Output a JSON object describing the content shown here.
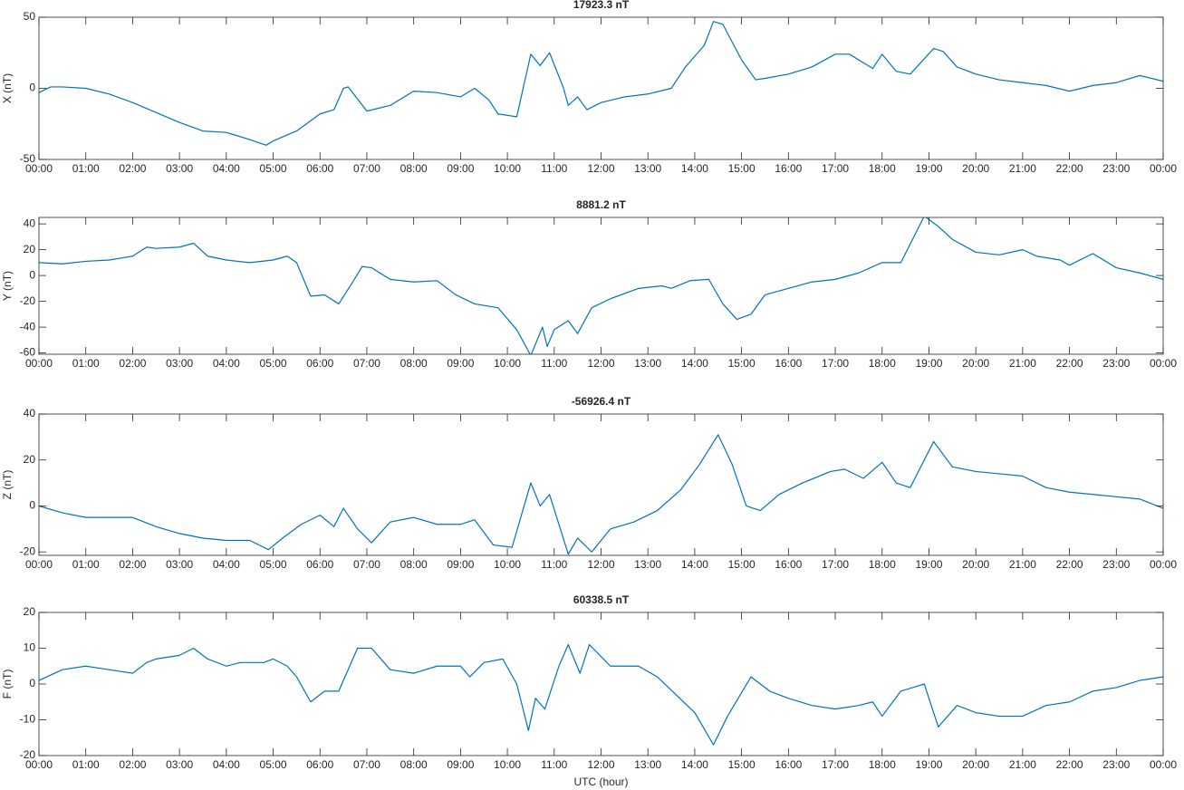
{
  "chart_data": [
    {
      "type": "line",
      "title": "17923.3 nT",
      "ylabel": "X (nT)",
      "color": "#0072bd",
      "x": [
        0,
        0.25,
        0.5,
        1,
        1.5,
        2,
        2.5,
        3,
        3.5,
        4,
        4.5,
        4.85,
        5,
        5.5,
        6,
        6.3,
        6.5,
        6.6,
        7,
        7.5,
        8,
        8.5,
        9,
        9.3,
        9.6,
        9.8,
        10.2,
        10.5,
        10.7,
        10.9,
        11.2,
        11.3,
        11.5,
        11.7,
        12,
        12.5,
        13,
        13.5,
        13.8,
        14.2,
        14.4,
        14.6,
        15,
        15.3,
        15.5,
        16,
        16.5,
        17,
        17.3,
        17.6,
        17.8,
        18,
        18.3,
        18.6,
        19.1,
        19.3,
        19.6,
        20,
        20.5,
        21,
        21.5,
        22,
        22.5,
        23,
        23.5,
        24
      ],
      "values": [
        -3,
        1,
        1,
        0,
        -4,
        -10,
        -17,
        -24,
        -30,
        -31,
        -36,
        -40,
        -37,
        -30,
        -18,
        -15,
        0,
        1,
        -16,
        -12,
        -2,
        -3,
        -6,
        0,
        -8,
        -18,
        -20,
        24,
        16,
        25,
        0,
        -12,
        -6,
        -15,
        -10,
        -6,
        -4,
        0,
        15,
        30,
        47,
        45,
        20,
        6,
        7,
        10,
        15,
        24,
        24,
        18,
        14,
        24,
        12,
        10,
        28,
        26,
        15,
        10,
        6,
        4,
        2,
        -2,
        2,
        4,
        9,
        5
      ],
      "ylim": [
        -50,
        50
      ],
      "yticks": [
        -50,
        0,
        50
      ],
      "xlim": [
        0,
        24
      ],
      "xticks": [
        {
          "value": 0,
          "label": "00:00"
        },
        {
          "value": 1,
          "label": "01:00"
        },
        {
          "value": 2,
          "label": "02:00"
        },
        {
          "value": 3,
          "label": "03:00"
        },
        {
          "value": 4,
          "label": "04:00"
        },
        {
          "value": 5,
          "label": "05:00"
        },
        {
          "value": 6,
          "label": "06:00"
        },
        {
          "value": 7,
          "label": "07:00"
        },
        {
          "value": 8,
          "label": "08:00"
        },
        {
          "value": 9,
          "label": "09:00"
        },
        {
          "value": 10,
          "label": "10:00"
        },
        {
          "value": 11,
          "label": "11:00"
        },
        {
          "value": 12,
          "label": "12:00"
        },
        {
          "value": 13,
          "label": "13:00"
        },
        {
          "value": 14,
          "label": "14:00"
        },
        {
          "value": 15,
          "label": "15:00"
        },
        {
          "value": 16,
          "label": "16:00"
        },
        {
          "value": 17,
          "label": "17:00"
        },
        {
          "value": 18,
          "label": "18:00"
        },
        {
          "value": 19,
          "label": "19:00"
        },
        {
          "value": 20,
          "label": "20:00"
        },
        {
          "value": 21,
          "label": "21:00"
        },
        {
          "value": 22,
          "label": "22:00"
        },
        {
          "value": 23,
          "label": "23:00"
        },
        {
          "value": 24,
          "label": "00:00"
        }
      ]
    },
    {
      "type": "line",
      "title": "8881.2 nT",
      "ylabel": "Y (nT)",
      "color": "#0072bd",
      "x": [
        0,
        0.5,
        1,
        1.5,
        2,
        2.3,
        2.5,
        3,
        3.3,
        3.6,
        4,
        4.5,
        5,
        5.3,
        5.5,
        5.8,
        6.1,
        6.4,
        6.7,
        6.9,
        7.1,
        7.5,
        8,
        8.5,
        8.9,
        9.3,
        9.8,
        10.2,
        10.5,
        10.75,
        10.85,
        11,
        11.3,
        11.5,
        11.8,
        12.2,
        12.8,
        13.3,
        13.5,
        13.9,
        14.3,
        14.6,
        14.9,
        15.2,
        15.5,
        16,
        16.5,
        17,
        17.5,
        18,
        18.4,
        18.9,
        19.2,
        19.5,
        20,
        20.5,
        21,
        21.3,
        21.8,
        22,
        22.5,
        23,
        23.5,
        24
      ],
      "values": [
        10,
        9,
        11,
        12,
        15,
        22,
        21,
        22,
        25,
        15,
        12,
        10,
        12,
        15,
        10,
        -16,
        -15,
        -22,
        -5,
        7,
        6,
        -3,
        -5,
        -4,
        -15,
        -22,
        -25,
        -42,
        -62,
        -40,
        -55,
        -42,
        -35,
        -45,
        -25,
        -18,
        -10,
        -8,
        -10,
        -4,
        -3,
        -22,
        -34,
        -30,
        -15,
        -10,
        -5,
        -3,
        2,
        10,
        10,
        46,
        38,
        28,
        18,
        16,
        20,
        15,
        12,
        8,
        17,
        6,
        2,
        -3
      ],
      "ylim": [
        -61,
        45
      ],
      "yticks": [
        -60,
        -40,
        -20,
        0,
        20,
        40
      ],
      "xlim": [
        0,
        24
      ],
      "xticks": [
        {
          "value": 0,
          "label": "00:00"
        },
        {
          "value": 1,
          "label": "01:00"
        },
        {
          "value": 2,
          "label": "02:00"
        },
        {
          "value": 3,
          "label": "03:00"
        },
        {
          "value": 4,
          "label": "04:00"
        },
        {
          "value": 5,
          "label": "05:00"
        },
        {
          "value": 6,
          "label": "06:00"
        },
        {
          "value": 7,
          "label": "07:00"
        },
        {
          "value": 8,
          "label": "08:00"
        },
        {
          "value": 9,
          "label": "09:00"
        },
        {
          "value": 10,
          "label": "10:00"
        },
        {
          "value": 11,
          "label": "11:00"
        },
        {
          "value": 12,
          "label": "12:00"
        },
        {
          "value": 13,
          "label": "13:00"
        },
        {
          "value": 14,
          "label": "14:00"
        },
        {
          "value": 15,
          "label": "15:00"
        },
        {
          "value": 16,
          "label": "16:00"
        },
        {
          "value": 17,
          "label": "17:00"
        },
        {
          "value": 18,
          "label": "18:00"
        },
        {
          "value": 19,
          "label": "19:00"
        },
        {
          "value": 20,
          "label": "20:00"
        },
        {
          "value": 21,
          "label": "21:00"
        },
        {
          "value": 22,
          "label": "22:00"
        },
        {
          "value": 23,
          "label": "23:00"
        },
        {
          "value": 24,
          "label": "00:00"
        }
      ]
    },
    {
      "type": "line",
      "title": "-56926.4 nT",
      "ylabel": "Z (nT)",
      "color": "#0072bd",
      "x": [
        0,
        0.5,
        1,
        1.5,
        2,
        2.5,
        3,
        3.5,
        4,
        4.5,
        4.9,
        5.2,
        5.6,
        6,
        6.3,
        6.5,
        6.8,
        7.1,
        7.5,
        8,
        8.5,
        9,
        9.3,
        9.7,
        10.1,
        10.5,
        10.7,
        10.9,
        11.3,
        11.5,
        11.8,
        12.2,
        12.7,
        13.2,
        13.7,
        14.1,
        14.5,
        14.8,
        15.1,
        15.4,
        15.8,
        16.3,
        16.9,
        17.2,
        17.6,
        18,
        18.3,
        18.6,
        19.1,
        19.5,
        20,
        20.5,
        21,
        21.5,
        22,
        22.5,
        23,
        23.5,
        24
      ],
      "values": [
        0,
        -3,
        -5,
        -5,
        -5,
        -9,
        -12,
        -14,
        -15,
        -15,
        -19,
        -14,
        -8,
        -4,
        -9,
        -1,
        -10,
        -16,
        -7,
        -5,
        -8,
        -8,
        -6,
        -17,
        -18,
        10,
        0,
        5,
        -21,
        -14,
        -20,
        -10,
        -7,
        -2,
        7,
        18,
        31,
        18,
        0,
        -2,
        5,
        10,
        15,
        16,
        12,
        19,
        10,
        8,
        28,
        17,
        15,
        14,
        13,
        8,
        6,
        5,
        4,
        3,
        -1
      ],
      "ylim": [
        -21.5,
        40
      ],
      "yticks": [
        -20,
        0,
        20,
        40
      ],
      "xlim": [
        0,
        24
      ],
      "xticks": [
        {
          "value": 0,
          "label": "00:00"
        },
        {
          "value": 1,
          "label": "01:00"
        },
        {
          "value": 2,
          "label": "02:00"
        },
        {
          "value": 3,
          "label": "03:00"
        },
        {
          "value": 4,
          "label": "04:00"
        },
        {
          "value": 5,
          "label": "05:00"
        },
        {
          "value": 6,
          "label": "06:00"
        },
        {
          "value": 7,
          "label": "07:00"
        },
        {
          "value": 8,
          "label": "08:00"
        },
        {
          "value": 9,
          "label": "09:00"
        },
        {
          "value": 10,
          "label": "10:00"
        },
        {
          "value": 11,
          "label": "11:00"
        },
        {
          "value": 12,
          "label": "12:00"
        },
        {
          "value": 13,
          "label": "13:00"
        },
        {
          "value": 14,
          "label": "14:00"
        },
        {
          "value": 15,
          "label": "15:00"
        },
        {
          "value": 16,
          "label": "16:00"
        },
        {
          "value": 17,
          "label": "17:00"
        },
        {
          "value": 18,
          "label": "18:00"
        },
        {
          "value": 19,
          "label": "19:00"
        },
        {
          "value": 20,
          "label": "20:00"
        },
        {
          "value": 21,
          "label": "21:00"
        },
        {
          "value": 22,
          "label": "22:00"
        },
        {
          "value": 23,
          "label": "23:00"
        },
        {
          "value": 24,
          "label": "00:00"
        }
      ]
    },
    {
      "type": "line",
      "title": "60338.5 nT",
      "ylabel": "F (nT)",
      "xlabel": "UTC (hour)",
      "color": "#0072bd",
      "x": [
        0,
        0.5,
        1,
        1.5,
        2,
        2.3,
        2.5,
        3,
        3.3,
        3.6,
        4,
        4.3,
        4.8,
        5,
        5.3,
        5.5,
        5.8,
        6.1,
        6.4,
        6.8,
        7.1,
        7.5,
        8,
        8.5,
        9,
        9.2,
        9.5,
        9.9,
        10.2,
        10.45,
        10.6,
        10.8,
        11.1,
        11.3,
        11.55,
        11.75,
        12.2,
        12.8,
        13.2,
        13.6,
        14,
        14.4,
        14.7,
        15.2,
        15.6,
        16,
        16.5,
        17,
        17.5,
        17.8,
        18,
        18.4,
        18.9,
        19.2,
        19.6,
        20,
        20.5,
        21,
        21.5,
        22,
        22.5,
        23,
        23.5,
        24
      ],
      "values": [
        1,
        4,
        5,
        4,
        3,
        6,
        7,
        8,
        10,
        7,
        5,
        6,
        6,
        7,
        5,
        2,
        -5,
        -2,
        -2,
        10,
        10,
        4,
        3,
        5,
        5,
        2,
        6,
        7,
        0,
        -13,
        -4,
        -7,
        5,
        11,
        3,
        11,
        5,
        5,
        2,
        -3,
        -8,
        -17,
        -9,
        2,
        -2,
        -4,
        -6,
        -7,
        -6,
        -5,
        -9,
        -2,
        0,
        -12,
        -6,
        -8,
        -9,
        -9,
        -6,
        -5,
        -2,
        -1,
        1,
        2
      ],
      "ylim": [
        -20,
        20
      ],
      "yticks": [
        -20,
        -10,
        0,
        10,
        20
      ],
      "xlim": [
        0,
        24
      ],
      "xticks": [
        {
          "value": 0,
          "label": "00:00"
        },
        {
          "value": 1,
          "label": "01:00"
        },
        {
          "value": 2,
          "label": "02:00"
        },
        {
          "value": 3,
          "label": "03:00"
        },
        {
          "value": 4,
          "label": "04:00"
        },
        {
          "value": 5,
          "label": "05:00"
        },
        {
          "value": 6,
          "label": "06:00"
        },
        {
          "value": 7,
          "label": "07:00"
        },
        {
          "value": 8,
          "label": "08:00"
        },
        {
          "value": 9,
          "label": "09:00"
        },
        {
          "value": 10,
          "label": "10:00"
        },
        {
          "value": 11,
          "label": "11:00"
        },
        {
          "value": 12,
          "label": "12:00"
        },
        {
          "value": 13,
          "label": "13:00"
        },
        {
          "value": 14,
          "label": "14:00"
        },
        {
          "value": 15,
          "label": "15:00"
        },
        {
          "value": 16,
          "label": "16:00"
        },
        {
          "value": 17,
          "label": "17:00"
        },
        {
          "value": 18,
          "label": "18:00"
        },
        {
          "value": 19,
          "label": "19:00"
        },
        {
          "value": 20,
          "label": "20:00"
        },
        {
          "value": 21,
          "label": "21:00"
        },
        {
          "value": 22,
          "label": "22:00"
        },
        {
          "value": 23,
          "label": "23:00"
        },
        {
          "value": 24,
          "label": "00:00"
        }
      ]
    }
  ]
}
